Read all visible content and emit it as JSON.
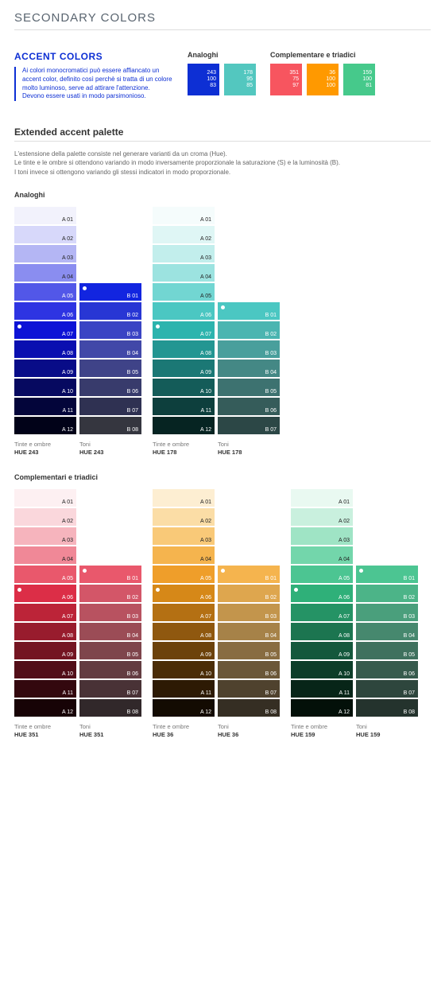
{
  "page_title": "SECONDARY COLORS",
  "accent": {
    "title": "ACCENT COLORS",
    "desc": "Ai colori monocromatici può essere affiancato un accent color, definito così perchè si tratta di un colore molto luminoso, serve ad attirare l'attenzione. Devono essere usati in modo parsimonioso.",
    "group_a": {
      "label": "Analoghi",
      "chips": [
        {
          "bg": "#0d2fd4",
          "l": [
            "243",
            "100",
            "83"
          ]
        },
        {
          "bg": "#53c7bf",
          "l": [
            "178",
            "95",
            "85"
          ]
        }
      ]
    },
    "group_b": {
      "label": "Complementare e triadici",
      "chips": [
        {
          "bg": "#f7555f",
          "l": [
            "351",
            "75",
            "97"
          ]
        },
        {
          "bg": "#ff9900",
          "l": [
            "36",
            "100",
            "100"
          ]
        },
        {
          "bg": "#46c98b",
          "l": [
            "159",
            "100",
            "81"
          ]
        }
      ]
    }
  },
  "ext_title": "Extended accent palette",
  "ext_desc": "L'estensione della palette consiste nel generare varianti da un croma (Hue).\nLe tinte e le ombre si ottendono variando in modo inversamente proporzionale la saturazione (S) e la luminosità (B).\nI toni invece si ottengono variando gli stessi indicatori in modo proporzionale.",
  "sec1": {
    "title": "Analoghi",
    "pairs": [
      {
        "a_lab": [
          "Tinte e ombre",
          "HUE 243"
        ],
        "b_lab": [
          "Toni",
          "HUE 243"
        ],
        "a": [
          {
            "c": "#f2f2fc",
            "t": "A 01"
          },
          {
            "c": "#d7d8fa",
            "t": "A 02"
          },
          {
            "c": "#b4b6f4",
            "t": "A 03"
          },
          {
            "c": "#8a8df0",
            "t": "A 04"
          },
          {
            "c": "#5257e8",
            "t": "A 05",
            "dk": 1
          },
          {
            "c": "#2e34e2",
            "t": "A 06",
            "dk": 1
          },
          {
            "c": "#0d13d6",
            "t": "A 07",
            "dk": 1,
            "dot": 1
          },
          {
            "c": "#0a0fb0",
            "t": "A 08",
            "dk": 1
          },
          {
            "c": "#080c88",
            "t": "A 09",
            "dk": 1
          },
          {
            "c": "#060960",
            "t": "A 10",
            "dk": 1
          },
          {
            "c": "#03053a",
            "t": "A 11",
            "dk": 1
          },
          {
            "c": "#010218",
            "t": "A 12",
            "dk": 1
          }
        ],
        "b": [
          {
            "c": "#1225e0",
            "t": "B 01",
            "dk": 1,
            "dot": 1
          },
          {
            "c": "#2836d4",
            "t": "B 02",
            "dk": 1
          },
          {
            "c": "#3a44c4",
            "t": "B 03",
            "dk": 1
          },
          {
            "c": "#4148a8",
            "t": "B 04",
            "dk": 1
          },
          {
            "c": "#3f4388",
            "t": "B 05",
            "dk": 1
          },
          {
            "c": "#383b6c",
            "t": "B 06",
            "dk": 1
          },
          {
            "c": "#2f3152",
            "t": "B 07",
            "dk": 1
          },
          {
            "c": "#35363f",
            "t": "B 08",
            "dk": 1
          }
        ]
      },
      {
        "a_lab": [
          "Tinte e ombre",
          "HUE 178"
        ],
        "b_lab": [
          "Toni",
          "HUE 178"
        ],
        "a": [
          {
            "c": "#f5fcfc",
            "t": "A 01"
          },
          {
            "c": "#dff6f5",
            "t": "A 02"
          },
          {
            "c": "#c2eeec",
            "t": "A 03"
          },
          {
            "c": "#9ce3e0",
            "t": "A 04"
          },
          {
            "c": "#72d6d2",
            "t": "A 05"
          },
          {
            "c": "#4bc7c2",
            "t": "A 06",
            "dk": 1
          },
          {
            "c": "#2cb4ae",
            "t": "A 07",
            "dk": 1,
            "dot": 1
          },
          {
            "c": "#239692",
            "t": "A 08",
            "dk": 1
          },
          {
            "c": "#1b7875",
            "t": "A 09",
            "dk": 1
          },
          {
            "c": "#145c59",
            "t": "A 10",
            "dk": 1
          },
          {
            "c": "#0d3f3d",
            "t": "A 11",
            "dk": 1
          },
          {
            "c": "#062422",
            "t": "A 12",
            "dk": 1
          }
        ],
        "b": [
          {
            "c": "#4bc7c2",
            "t": "B 01",
            "dk": 1,
            "dot": 1
          },
          {
            "c": "#4bb5b1",
            "t": "B 02",
            "dk": 1
          },
          {
            "c": "#499f9c",
            "t": "B 03",
            "dk": 1
          },
          {
            "c": "#448885",
            "t": "B 04",
            "dk": 1
          },
          {
            "c": "#3d7270",
            "t": "B 05",
            "dk": 1
          },
          {
            "c": "#355c5a",
            "t": "B 06",
            "dk": 1
          },
          {
            "c": "#2c4746",
            "t": "B 07",
            "dk": 1
          }
        ]
      }
    ]
  },
  "sec2": {
    "title": "Complementari e triadici",
    "pairs": [
      {
        "a_lab": [
          "Tinte e ombre",
          "HUE 351"
        ],
        "b_lab": [
          "Toni",
          "HUE 351"
        ],
        "a": [
          {
            "c": "#fdf0f2",
            "t": "A 01"
          },
          {
            "c": "#fad7dc",
            "t": "A 02"
          },
          {
            "c": "#f6b4bd",
            "t": "A 03"
          },
          {
            "c": "#f08897",
            "t": "A 04"
          },
          {
            "c": "#e9586c",
            "t": "A 05",
            "dk": 1
          },
          {
            "c": "#dc2e47",
            "t": "A 06",
            "dk": 1,
            "dot": 1
          },
          {
            "c": "#bc2438",
            "t": "A 07",
            "dk": 1
          },
          {
            "c": "#981c2d",
            "t": "A 08",
            "dk": 1
          },
          {
            "c": "#741522",
            "t": "A 09",
            "dk": 1
          },
          {
            "c": "#520e18",
            "t": "A 10",
            "dk": 1
          },
          {
            "c": "#33080e",
            "t": "A 11",
            "dk": 1
          },
          {
            "c": "#170306",
            "t": "A 12",
            "dk": 1
          }
        ],
        "b": [
          {
            "c": "#e9586c",
            "t": "B 01",
            "dk": 1,
            "dot": 1
          },
          {
            "c": "#d35668",
            "t": "B 02",
            "dk": 1
          },
          {
            "c": "#b85260",
            "t": "B 03",
            "dk": 1
          },
          {
            "c": "#9b4c56",
            "t": "B 04",
            "dk": 1
          },
          {
            "c": "#7e454c",
            "t": "B 05",
            "dk": 1
          },
          {
            "c": "#633c41",
            "t": "B 06",
            "dk": 1
          },
          {
            "c": "#493236",
            "t": "B 07",
            "dk": 1
          },
          {
            "c": "#31282a",
            "t": "B 08",
            "dk": 1
          }
        ]
      },
      {
        "a_lab": [
          "Tinte e ombre",
          "HUE 36"
        ],
        "b_lab": [
          "Toni",
          "HUE 36"
        ],
        "a": [
          {
            "c": "#fdeed2",
            "t": "A 01"
          },
          {
            "c": "#fbdda6",
            "t": "A 02"
          },
          {
            "c": "#f9c978",
            "t": "A 03"
          },
          {
            "c": "#f5b44e",
            "t": "A 04"
          },
          {
            "c": "#ef9e2a",
            "t": "A 05",
            "dk": 1
          },
          {
            "c": "#d68818",
            "t": "A 06",
            "dk": 1,
            "dot": 1
          },
          {
            "c": "#b47013",
            "t": "A 07",
            "dk": 1
          },
          {
            "c": "#8f580f",
            "t": "A 08",
            "dk": 1
          },
          {
            "c": "#6c420b",
            "t": "A 09",
            "dk": 1
          },
          {
            "c": "#4b2d07",
            "t": "A 10",
            "dk": 1
          },
          {
            "c": "#2d1a04",
            "t": "A 11",
            "dk": 1
          },
          {
            "c": "#130b02",
            "t": "A 12",
            "dk": 1
          }
        ],
        "b": [
          {
            "c": "#f5b44e",
            "t": "B 01",
            "dk": 1,
            "dot": 1
          },
          {
            "c": "#dea64e",
            "t": "B 02",
            "dk": 1
          },
          {
            "c": "#c3954c",
            "t": "B 03",
            "dk": 1
          },
          {
            "c": "#a68248",
            "t": "B 04",
            "dk": 1
          },
          {
            "c": "#886c41",
            "t": "B 05",
            "dk": 1
          },
          {
            "c": "#6b5738",
            "t": "B 06",
            "dk": 1
          },
          {
            "c": "#4f422e",
            "t": "B 07",
            "dk": 1
          },
          {
            "c": "#352e23",
            "t": "B 08",
            "dk": 1
          }
        ]
      },
      {
        "a_lab": [
          "Tinte e ombre",
          "HUE 159"
        ],
        "b_lab": [
          "Toni",
          "HUE 159"
        ],
        "a": [
          {
            "c": "#e9f9f1",
            "t": "A 01"
          },
          {
            "c": "#c9f0de",
            "t": "A 02"
          },
          {
            "c": "#9fe4c5",
            "t": "A 03"
          },
          {
            "c": "#73d6ab",
            "t": "A 04"
          },
          {
            "c": "#4cc592",
            "t": "A 05",
            "dk": 1
          },
          {
            "c": "#2fb079",
            "t": "A 06",
            "dk": 1,
            "dot": 1
          },
          {
            "c": "#259365",
            "t": "A 07",
            "dk": 1
          },
          {
            "c": "#1c7550",
            "t": "A 08",
            "dk": 1
          },
          {
            "c": "#14583c",
            "t": "A 09",
            "dk": 1
          },
          {
            "c": "#0d3d29",
            "t": "A 10",
            "dk": 1
          },
          {
            "c": "#072518",
            "t": "A 11",
            "dk": 1
          },
          {
            "c": "#031009",
            "t": "A 12",
            "dk": 1
          }
        ],
        "b": [
          {
            "c": "#4cc592",
            "t": "B 01",
            "dk": 1,
            "dot": 1
          },
          {
            "c": "#4cb488",
            "t": "B 02",
            "dk": 1
          },
          {
            "c": "#4a9f7c",
            "t": "B 03",
            "dk": 1
          },
          {
            "c": "#46886e",
            "t": "B 04",
            "dk": 1
          },
          {
            "c": "#3f715e",
            "t": "B 05",
            "dk": 1
          },
          {
            "c": "#375b4d",
            "t": "B 06",
            "dk": 1
          },
          {
            "c": "#2e463d",
            "t": "B 07",
            "dk": 1
          },
          {
            "c": "#24332d",
            "t": "B 08",
            "dk": 1
          }
        ]
      }
    ]
  }
}
